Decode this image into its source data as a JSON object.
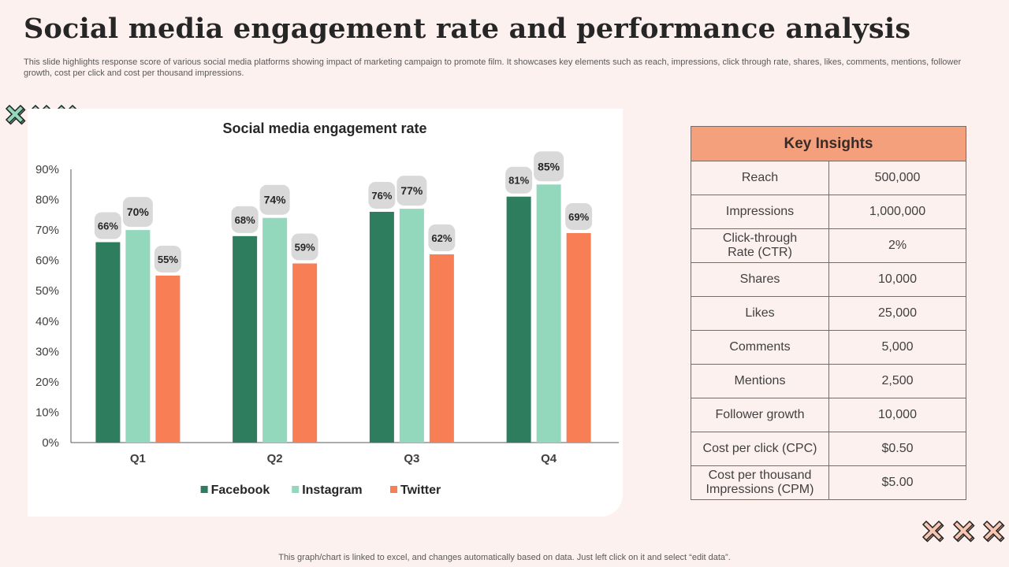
{
  "slide": {
    "title": "Social media engagement rate and performance analysis",
    "subtitle": "This slide highlights response score of various social media platforms showing impact of marketing campaign to promote film. It showcases key elements such as reach, impressions, click through rate, shares, likes, comments, mentions, follower growth, cost per click and cost per thousand impressions.",
    "footer": "This graph/chart is linked to excel,  and changes automatically based on data. Just left click on it and select “edit data”."
  },
  "chart_data": {
    "type": "bar",
    "title": "Social media engagement rate",
    "categories": [
      "Q1",
      "Q2",
      "Q3",
      "Q4"
    ],
    "series": [
      {
        "name": "Facebook",
        "values": [
          66,
          68,
          76,
          81
        ],
        "color": "#2e7d5e"
      },
      {
        "name": "Instagram",
        "values": [
          70,
          74,
          77,
          85
        ],
        "color": "#93d7bd"
      },
      {
        "name": "Twitter",
        "values": [
          55,
          59,
          62,
          69
        ],
        "color": "#f77e55"
      }
    ],
    "ylim": [
      0,
      90
    ],
    "yticks": [
      "0%",
      "10%",
      "20%",
      "30%",
      "40%",
      "50%",
      "60%",
      "70%",
      "80%",
      "90%"
    ],
    "value_suffix": "%",
    "xlabel": "",
    "ylabel": "",
    "legend_position": "bottom"
  },
  "insights": {
    "header": "Key Insights",
    "rows": [
      {
        "metric": "Reach",
        "value": "500,000"
      },
      {
        "metric": "Impressions",
        "value": "1,000,000"
      },
      {
        "metric": "Click-through\nRate (CTR)",
        "value": "2%"
      },
      {
        "metric": "Shares",
        "value": "10,000"
      },
      {
        "metric": "Likes",
        "value": "25,000"
      },
      {
        "metric": "Comments",
        "value": "5,000"
      },
      {
        "metric": "Mentions",
        "value": "2,500"
      },
      {
        "metric": "Follower growth",
        "value": "10,000"
      },
      {
        "metric": "Cost per click (CPC)",
        "value": "$0.50"
      },
      {
        "metric": "Cost per thousand\nImpressions (CPM)",
        "value": "$5.00"
      }
    ]
  },
  "colors": {
    "background": "#fcf1ee",
    "accent": "#f4a07c",
    "deco_green": "#93d7bd",
    "deco_peach": "#f8c5b0"
  }
}
